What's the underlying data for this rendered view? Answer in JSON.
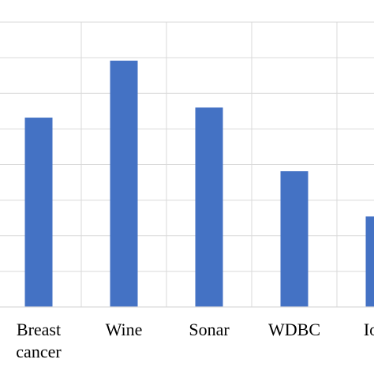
{
  "chart_data": {
    "type": "bar",
    "categories": [
      "Breast cancer",
      "Wine",
      "Sonar",
      "WDBC",
      "Iono"
    ],
    "category_lines": [
      [
        "Breast",
        "cancer"
      ],
      [
        "Wine"
      ],
      [
        "Sonar"
      ],
      [
        "WDBC"
      ],
      [
        "Iono"
      ]
    ],
    "values": [
      5.65,
      7.35,
      5.95,
      4.05,
      2.7
    ],
    "ylim": [
      0,
      8.5
    ],
    "gridlines": true,
    "bar_color": "#4472c4",
    "grid_color": "#d9d9d9"
  }
}
